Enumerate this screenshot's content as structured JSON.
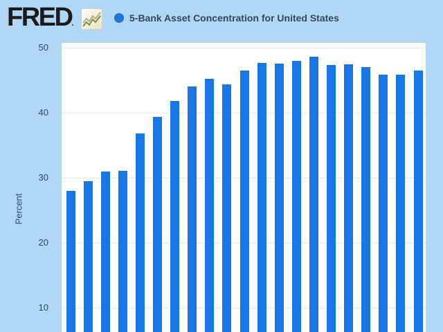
{
  "header": {
    "logo_text": "FRED",
    "logo_reg_mark": ".",
    "title": "5-Bank Asset Concentration for United States"
  },
  "chart_data": {
    "type": "bar",
    "title": "5-Bank Asset Concentration for United States",
    "ylabel": "Percent",
    "yticks": [
      50,
      40,
      30,
      20,
      10
    ],
    "ylim": [
      0,
      50
    ],
    "grid": true,
    "legend": "single series shown as blue dot in header",
    "x_axis_labels_visible": false,
    "num_bars": 21,
    "values": [
      28.0,
      29.5,
      31.0,
      31.1,
      36.8,
      39.4,
      41.8,
      44.0,
      45.2,
      44.4,
      46.5,
      47.7,
      47.6,
      48.0,
      48.6,
      47.3,
      47.4,
      47.0,
      45.9,
      45.9,
      46.5
    ],
    "colors": {
      "bar": "#1777e8",
      "legend_dot": "#1f72d8",
      "page_background": "#b1d7f7",
      "plot_background": "#ffffff",
      "gridline": "#e7e7e7",
      "text": "#31465f",
      "logo": "#1b1b1b"
    }
  }
}
